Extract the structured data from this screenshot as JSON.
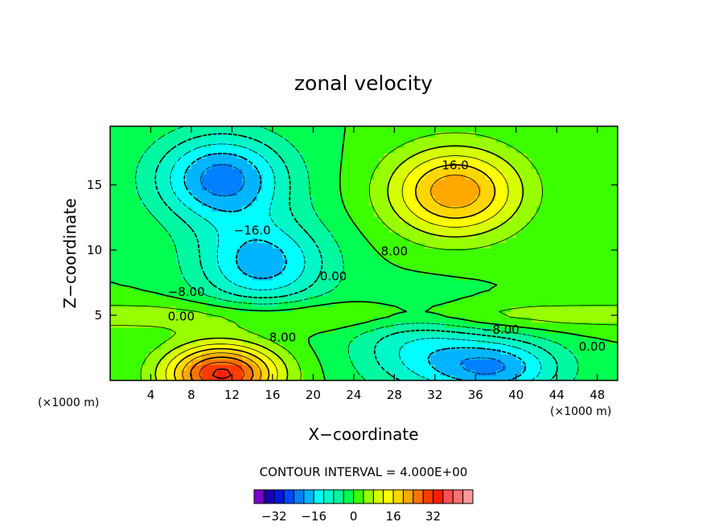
{
  "chart_data": {
    "type": "contour",
    "title": "zonal velocity",
    "xlabel": "X−coordinate",
    "ylabel": "Z−coordinate",
    "x_unit": "(×1000 m)",
    "z_unit": "(×1000 m)",
    "xlim": [
      0,
      50
    ],
    "ylim": [
      0,
      19.5
    ],
    "x_ticks": [
      4,
      8,
      12,
      16,
      20,
      24,
      28,
      32,
      36,
      40,
      44,
      48
    ],
    "y_ticks": [
      5,
      10,
      15
    ],
    "contour_interval_text": "CONTOUR INTERVAL = 4.000E+00",
    "contour_interval": 4,
    "contour_labels": [
      {
        "text": "16.0",
        "x": 34,
        "z": 16.5
      },
      {
        "text": "−16.0",
        "x": 14,
        "z": 11.5
      },
      {
        "text": "8.00",
        "x": 28,
        "z": 9.9
      },
      {
        "text": "0.00",
        "x": 22,
        "z": 8.0
      },
      {
        "text": "−8.00",
        "x": 7.5,
        "z": 6.8
      },
      {
        "text": "0.00",
        "x": 7.0,
        "z": 4.9
      },
      {
        "text": "8.00",
        "x": 17,
        "z": 3.3
      },
      {
        "text": "−8.00",
        "x": 38.5,
        "z": 3.9
      },
      {
        "text": "0.00",
        "x": 47.5,
        "z": 2.6
      }
    ],
    "features": [
      {
        "sign": "negative",
        "x": 11,
        "z": 15.5,
        "peak": -22
      },
      {
        "sign": "positive",
        "x": 34,
        "z": 14.5,
        "peak": 23
      },
      {
        "sign": "positive",
        "x": 11,
        "z": 0.5,
        "peak": 33
      },
      {
        "sign": "negative",
        "x": 38,
        "z": 1.0,
        "peak": -19
      },
      {
        "sign": "negative",
        "x": 30,
        "z": 2.5,
        "peak": -11
      },
      {
        "sign": "negative",
        "x": 15,
        "z": 9.0,
        "peak": -18
      }
    ],
    "colorbar": {
      "tick_labels": [
        "−32",
        "−16",
        "0",
        "16",
        "32"
      ],
      "tick_values": [
        -32,
        -16,
        0,
        16,
        32
      ],
      "colors": [
        "#7a00c8",
        "#1a00a8",
        "#0018d8",
        "#0046ff",
        "#0080ff",
        "#00b4ff",
        "#00ffff",
        "#00f8c8",
        "#00f8a0",
        "#00ff50",
        "#3cff00",
        "#98ff00",
        "#d6ff00",
        "#ffff00",
        "#ffd600",
        "#ffa800",
        "#ff7400",
        "#ff3c00",
        "#ff1e00",
        "#ff5050",
        "#ff7070",
        "#ff9898"
      ],
      "bin_edges_start": -40,
      "bin_width": 4
    }
  }
}
